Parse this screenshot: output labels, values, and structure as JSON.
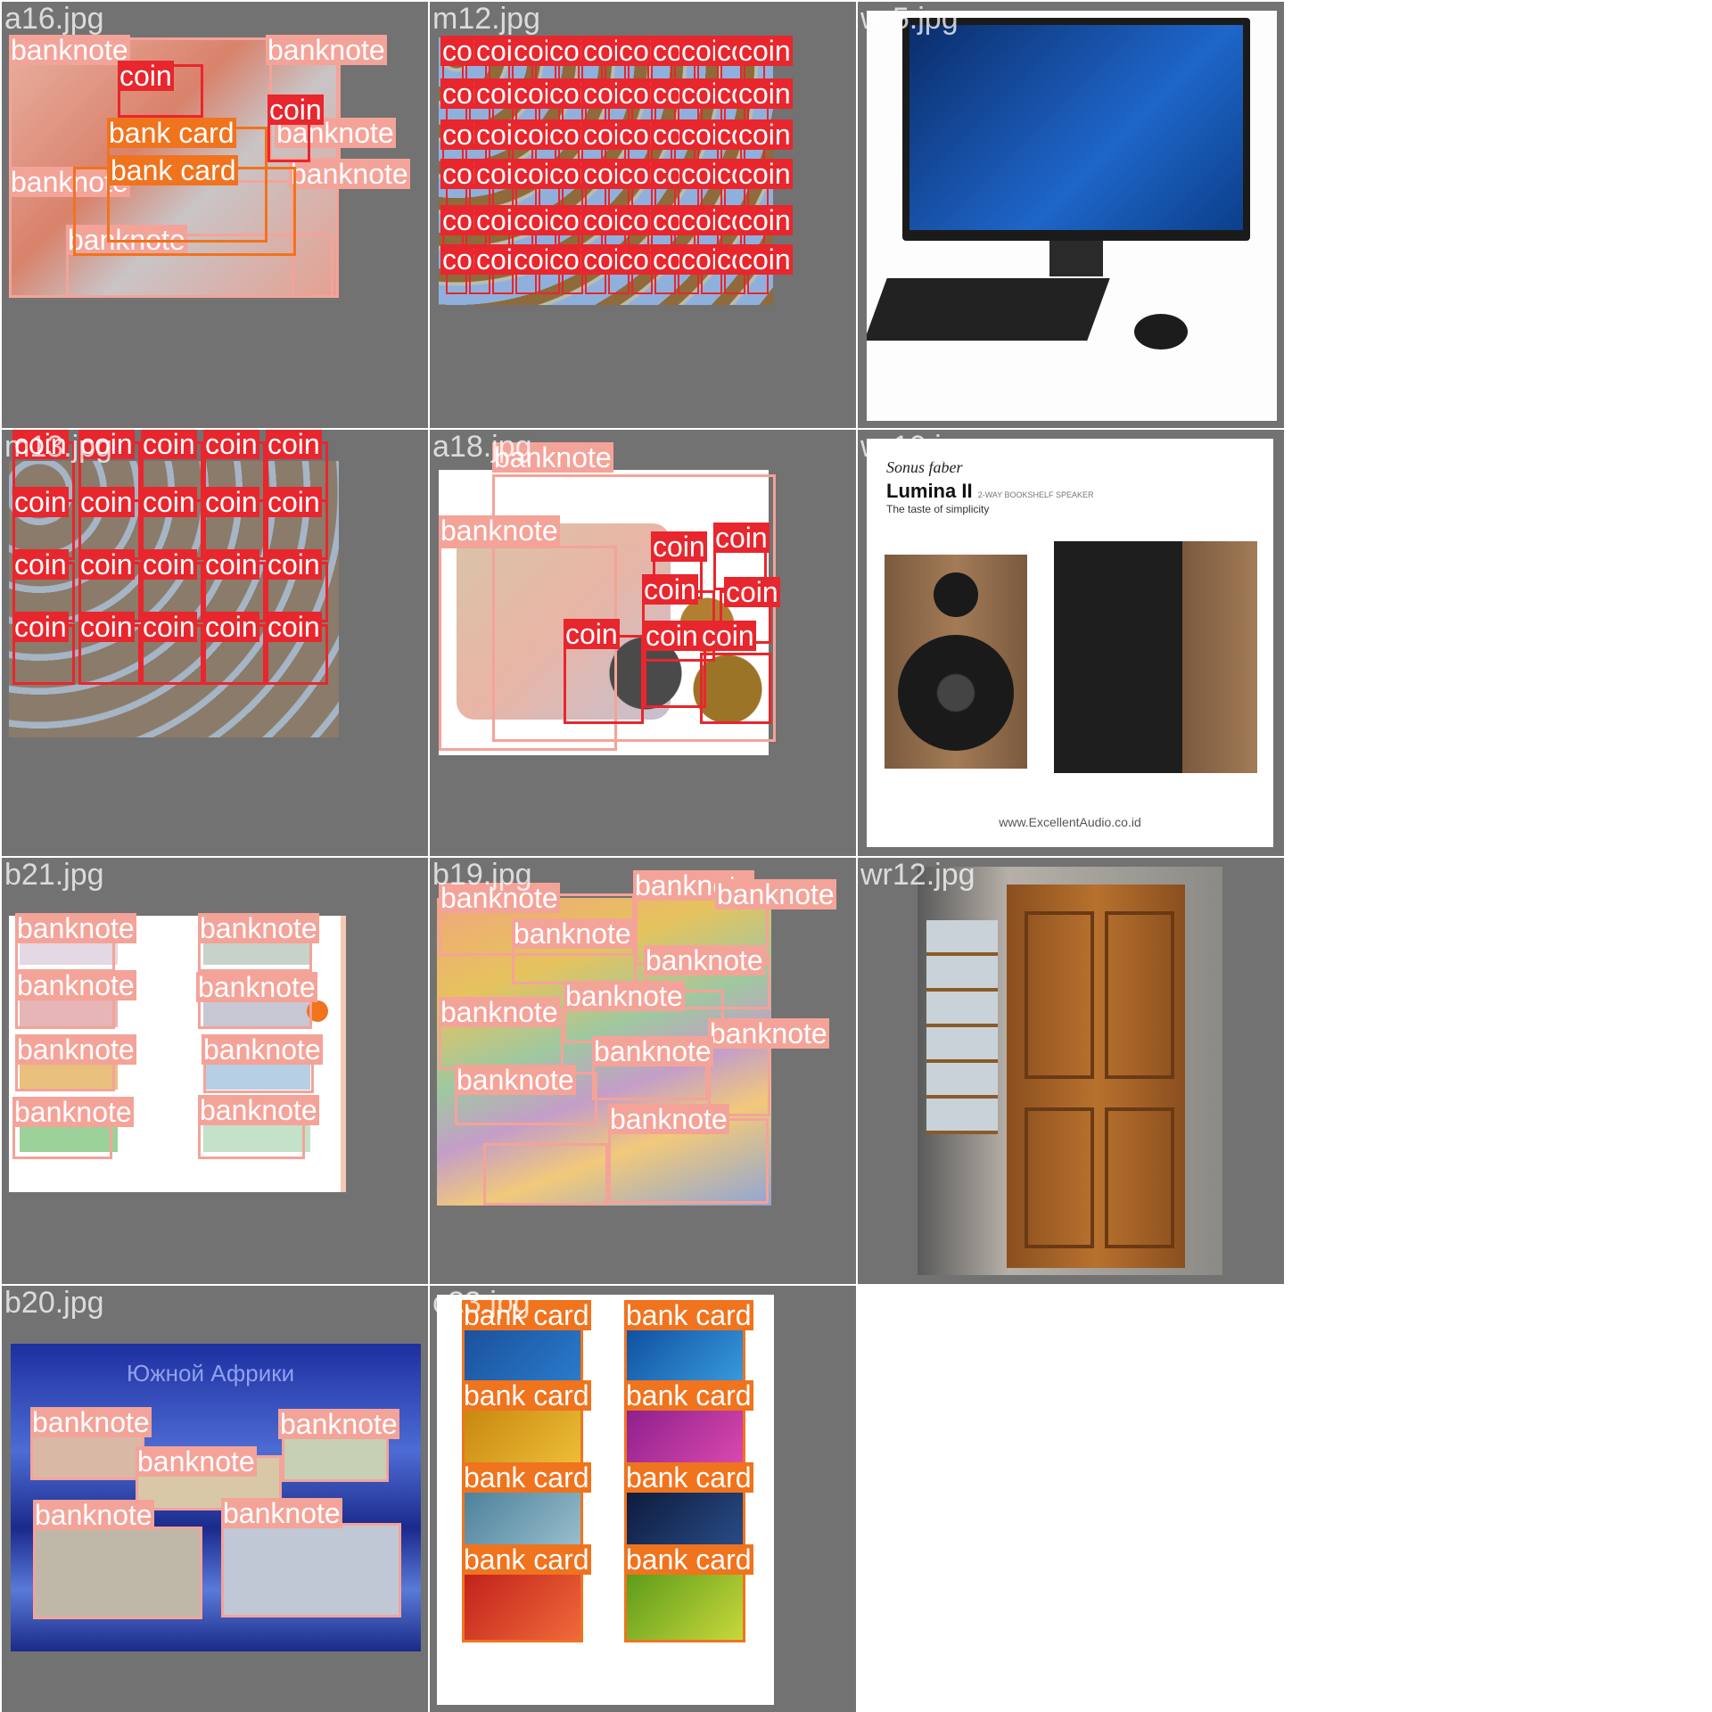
{
  "colors": {
    "coin": "#e8262d",
    "banknote": "#f4a399",
    "bank_card": "#f0731e",
    "tile_bg": "#727272"
  },
  "tiles": [
    {
      "title": "a16.jpg"
    },
    {
      "title": "m12.jpg"
    },
    {
      "title": "wr5.jpg"
    },
    {
      "title": "m13.jpg"
    },
    {
      "title": "a18.jpg"
    },
    {
      "title": "wr10.jpg"
    },
    {
      "title": "b21.jpg"
    },
    {
      "title": "b19.jpg"
    },
    {
      "title": "wr12.jpg"
    },
    {
      "title": "b20.jpg"
    },
    {
      "title": "c23.jpg"
    }
  ],
  "labels": {
    "coin": "coin",
    "banknote": "banknote",
    "bank_card": "bank card"
  },
  "speaker_ad": {
    "brand": "Sonus faber",
    "model": "Lumina II",
    "subtitle": "2-WAY BOOKSHELF SPEAKER",
    "tagline": "The taste of simplicity",
    "url": "www.ExcellentAudio.co.id"
  },
  "b20_caption": "Южной Африки"
}
